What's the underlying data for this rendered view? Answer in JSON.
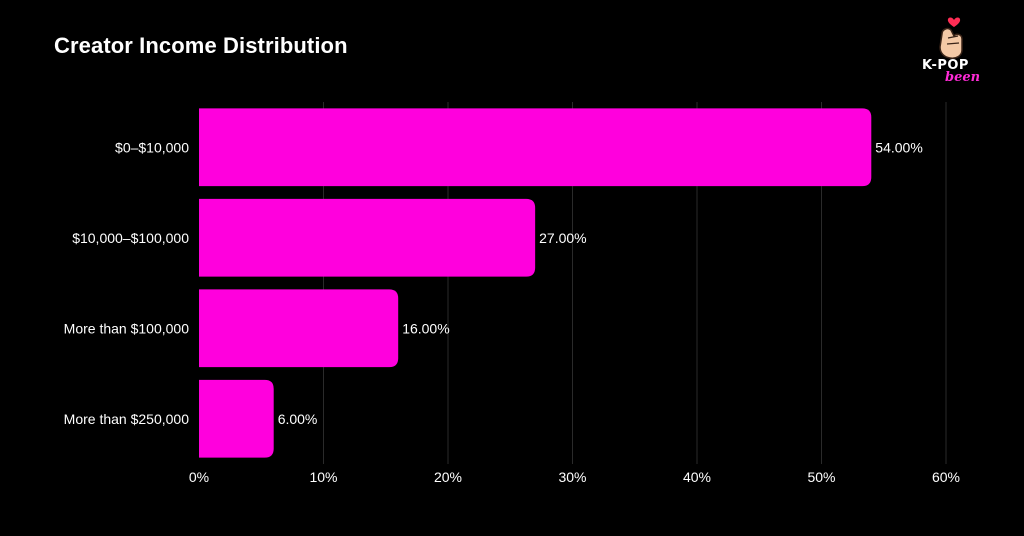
{
  "title": "Creator Income Distribution",
  "logo": {
    "line1": "K-POP",
    "line2": "been",
    "icon": "finger-heart-icon"
  },
  "colors": {
    "background": "#000000",
    "bar": "#ff00dd",
    "grid": "#2a2a2a",
    "text": "#ffffff"
  },
  "chart_data": {
    "type": "bar",
    "orientation": "horizontal",
    "title": "Creator Income Distribution",
    "categories": [
      "$0–$10,000",
      "$10,000–$100,000",
      "More than $100,000",
      "More than $250,000"
    ],
    "values": [
      54.0,
      27.0,
      16.0,
      6.0
    ],
    "value_labels": [
      "54.00%",
      "27.00%",
      "16.00%",
      "6.00%"
    ],
    "xlim": [
      0,
      60
    ],
    "x_ticks": [
      0,
      10,
      20,
      30,
      40,
      50,
      60
    ],
    "x_tick_labels": [
      "0%",
      "10%",
      "20%",
      "30%",
      "40%",
      "50%",
      "60%"
    ],
    "xlabel": "",
    "ylabel": "",
    "grid": true,
    "legend": "none"
  }
}
